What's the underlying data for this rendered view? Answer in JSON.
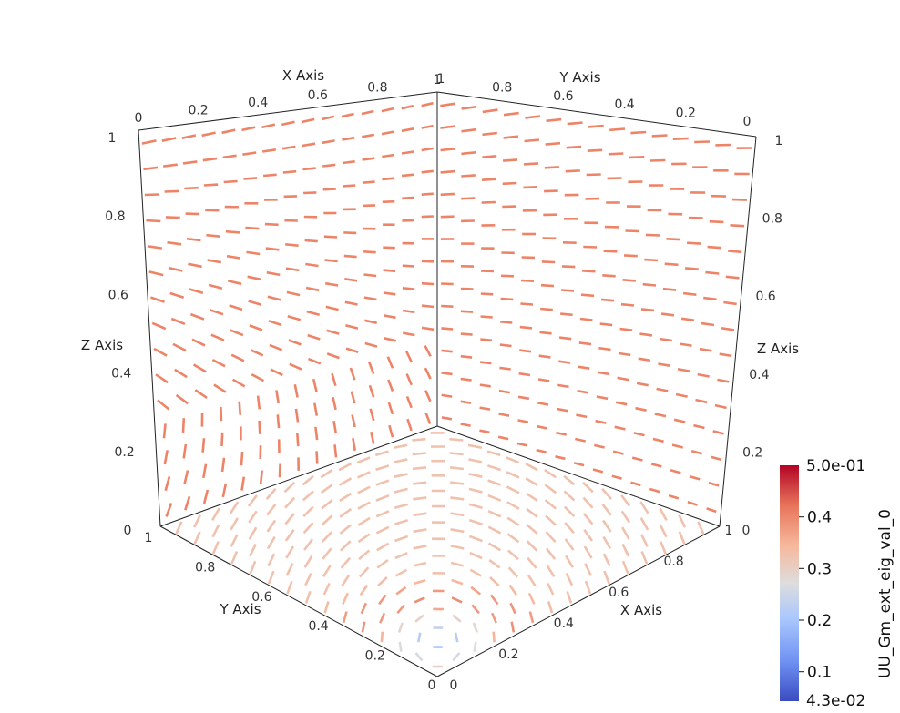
{
  "scene": {
    "axes": {
      "back_top_x": {
        "title": "X Axis",
        "ticks": [
          "0",
          "0.2",
          "0.4",
          "0.6",
          "0.8",
          "1"
        ]
      },
      "back_top_y": {
        "title": "Y Axis",
        "ticks": [
          "0",
          "0.2",
          "0.4",
          "0.6",
          "0.8",
          "1"
        ]
      },
      "back_left_z": {
        "title": "Z Axis",
        "ticks": [
          "0",
          "0.2",
          "0.4",
          "0.6",
          "0.8",
          "1"
        ]
      },
      "back_right_z": {
        "title": "Z Axis",
        "ticks": [
          "0",
          "0.2",
          "0.4",
          "0.6",
          "0.8",
          "1"
        ]
      },
      "bottom_y": {
        "title": "Y Axis",
        "ticks": [
          "1",
          "0.8",
          "0.6",
          "0.4",
          "0.2",
          "0"
        ]
      },
      "bottom_x": {
        "title": "X Axis",
        "ticks": [
          "0",
          "0.2",
          "0.4",
          "0.6",
          "0.8",
          "1"
        ]
      }
    },
    "colorbar": {
      "title": "UU_Gm_ext_eig_val_0",
      "max_label": "5.0e-01",
      "min_label": "4.3e-02",
      "ticks": [
        "0.4",
        "0.3",
        "0.2",
        "0.1"
      ],
      "range": [
        0.043,
        0.5
      ],
      "tick_values": [
        0.4,
        0.3,
        0.2,
        0.1
      ],
      "colormap": "Cool to Warm",
      "colors": [
        "#3b4cc0",
        "#6f92f3",
        "#aac7fd",
        "#dddddd",
        "#f7b89c",
        "#e7745b",
        "#b40426"
      ]
    },
    "glyph_color_default": "#ee8467"
  }
}
